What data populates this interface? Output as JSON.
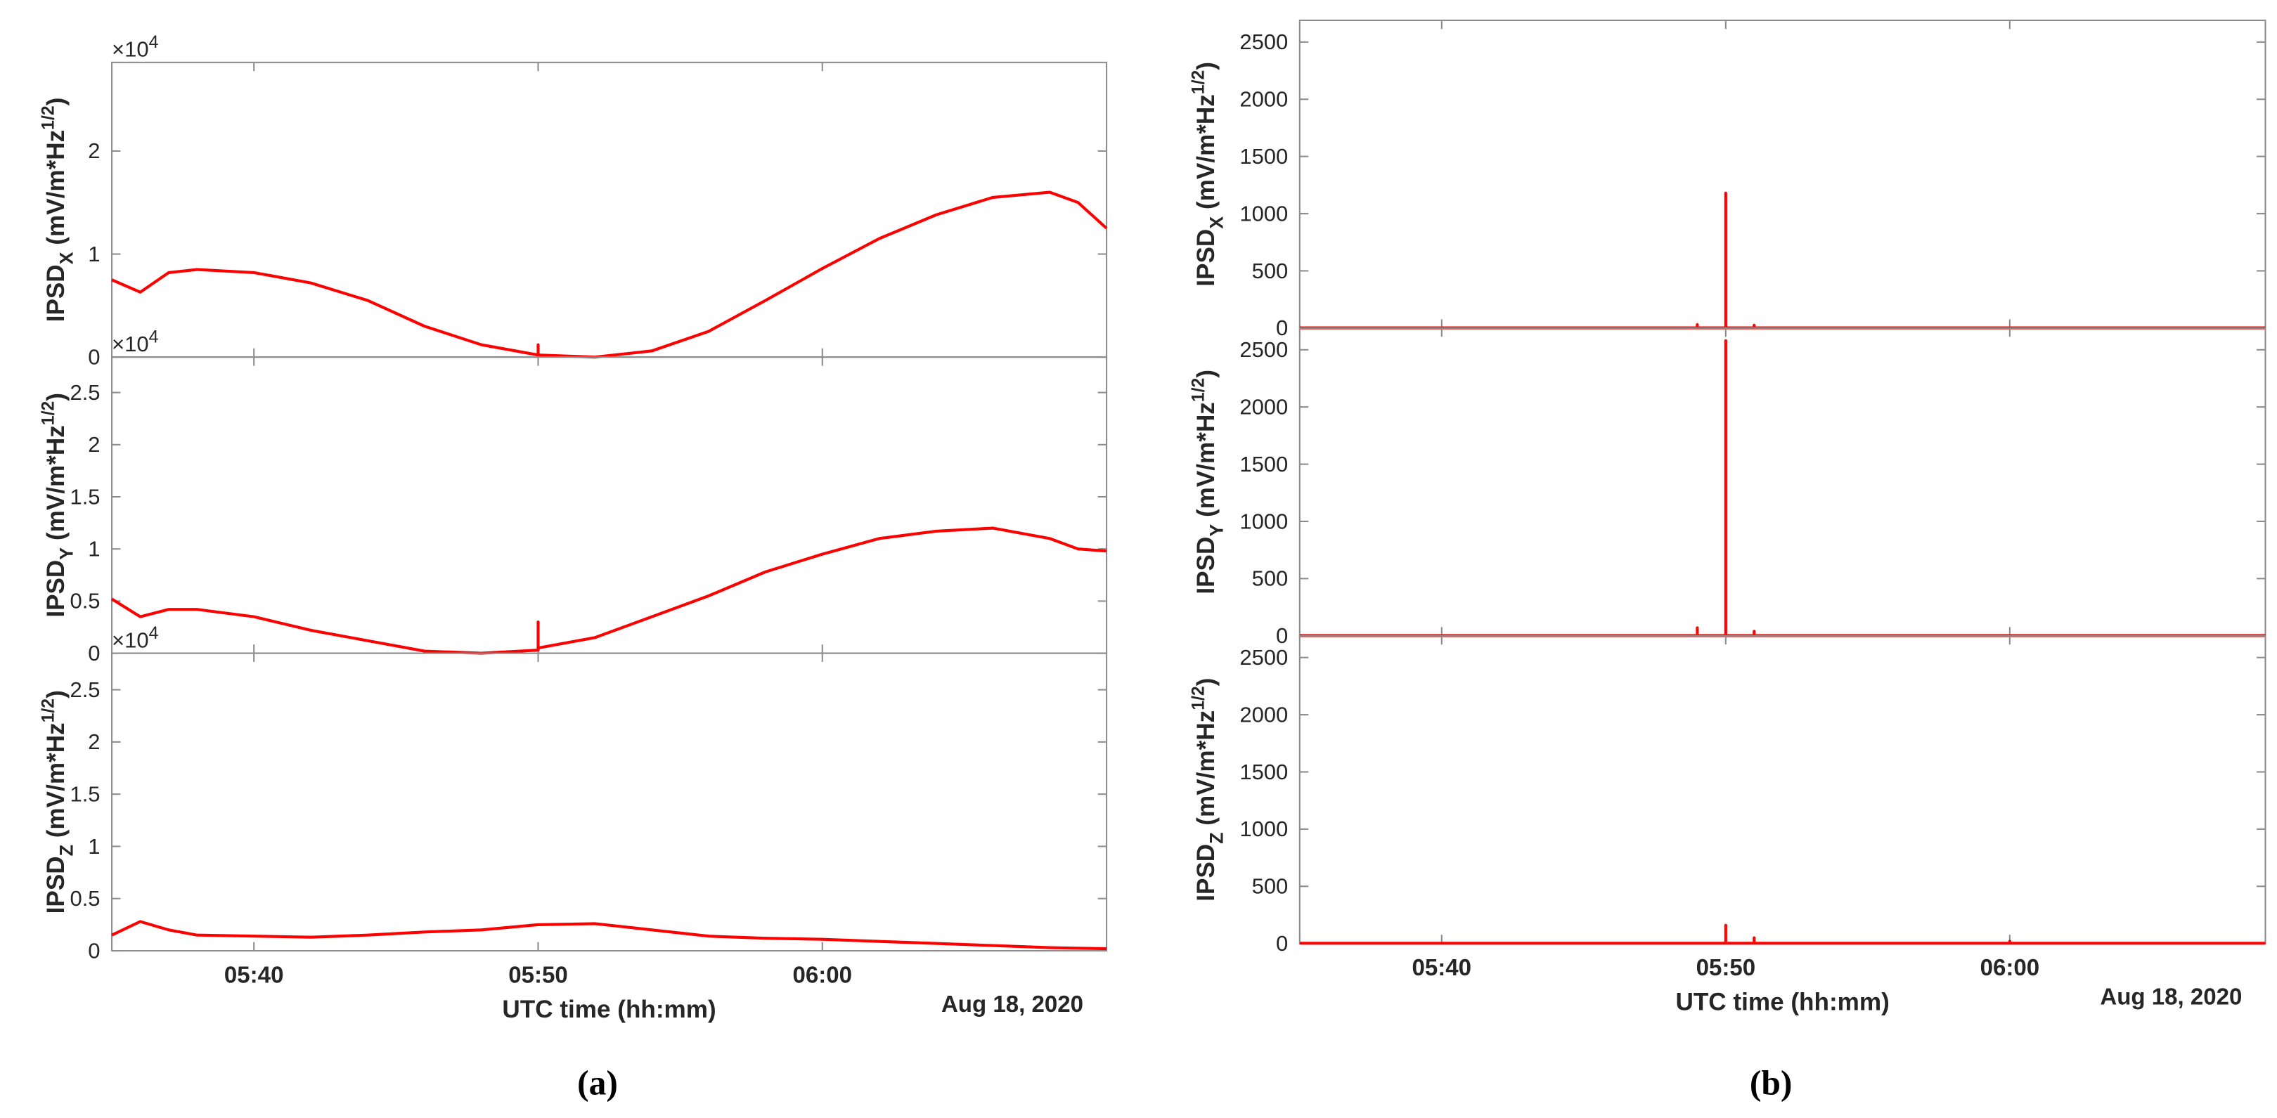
{
  "chart_data": [
    {
      "type": "line",
      "y_multiplier": {
        "base": "×10",
        "exponent": "4"
      },
      "ylabel": {
        "text": "IPSD",
        "sub": "X",
        "unit": " (mV/m*Hz",
        "sup": "1/2",
        "close": ")"
      },
      "xlim": [
        "05:35",
        "06:10"
      ],
      "xticks": [
        "05:40",
        "05:50",
        "06:00"
      ],
      "ylim": [
        0,
        2.86
      ],
      "yticks": [
        0,
        1,
        2
      ],
      "color": "#ff0000",
      "x": [
        "05:35",
        "05:36",
        "05:37",
        "05:38",
        "05:40",
        "05:42",
        "05:44",
        "05:46",
        "05:48",
        "05:50",
        "05:50",
        "05:50",
        "05:52",
        "05:54",
        "05:56",
        "05:58",
        "06:00",
        "06:02",
        "06:04",
        "06:06",
        "06:08",
        "06:09",
        "06:10"
      ],
      "values": [
        0.75,
        0.63,
        0.82,
        0.85,
        0.82,
        0.72,
        0.55,
        0.3,
        0.12,
        0.02,
        0.12,
        0.02,
        0,
        0.06,
        0.25,
        0.55,
        0.86,
        1.15,
        1.38,
        1.55,
        1.6,
        1.5,
        1.25
      ]
    },
    {
      "type": "line",
      "y_multiplier": {
        "base": "×10",
        "exponent": "4"
      },
      "ylabel": {
        "text": "IPSD",
        "sub": "Y",
        "unit": " (mV/m*Hz",
        "sup": "1/2",
        "close": ")"
      },
      "xlim": [
        "05:35",
        "06:10"
      ],
      "xticks": [
        "05:40",
        "05:50",
        "06:00"
      ],
      "ylim": [
        0,
        2.84
      ],
      "yticks": [
        0,
        0.5,
        1,
        1.5,
        2,
        2.5
      ],
      "color": "#ff0000",
      "x": [
        "05:35",
        "05:36",
        "05:37",
        "05:38",
        "05:40",
        "05:42",
        "05:44",
        "05:46",
        "05:48",
        "05:50",
        "05:50",
        "05:50",
        "05:52",
        "05:54",
        "05:56",
        "05:58",
        "06:00",
        "06:02",
        "06:04",
        "06:06",
        "06:08",
        "06:09",
        "06:10"
      ],
      "values": [
        0.52,
        0.35,
        0.42,
        0.42,
        0.35,
        0.22,
        0.12,
        0.02,
        0,
        0.03,
        0.3,
        0.05,
        0.15,
        0.35,
        0.55,
        0.78,
        0.95,
        1.1,
        1.17,
        1.2,
        1.1,
        1.0,
        0.98
      ]
    },
    {
      "type": "line",
      "y_multiplier": {
        "base": "×10",
        "exponent": "4"
      },
      "ylabel": {
        "text": "IPSD",
        "sub": "Z",
        "unit": " (mV/m*Hz",
        "sup": "1/2",
        "close": ")"
      },
      "xlim": [
        "05:35",
        "06:10"
      ],
      "xticks": [
        "05:40",
        "05:50",
        "06:00"
      ],
      "ylim": [
        0,
        2.85
      ],
      "yticks": [
        0,
        0.5,
        1,
        1.5,
        2,
        2.5
      ],
      "color": "#ff0000",
      "xlabel": "UTC time (hh:mm)",
      "date_label": "Aug 18, 2020",
      "panel_label": "(a)",
      "x": [
        "05:35",
        "05:36",
        "05:37",
        "05:38",
        "05:40",
        "05:42",
        "05:44",
        "05:46",
        "05:48",
        "05:50",
        "05:52",
        "05:54",
        "05:56",
        "05:58",
        "06:00",
        "06:02",
        "06:04",
        "06:06",
        "06:08",
        "06:10"
      ],
      "values": [
        0.15,
        0.28,
        0.2,
        0.15,
        0.14,
        0.13,
        0.15,
        0.18,
        0.2,
        0.25,
        0.26,
        0.2,
        0.14,
        0.12,
        0.11,
        0.09,
        0.07,
        0.05,
        0.03,
        0.02
      ]
    },
    {
      "type": "line",
      "ylabel": {
        "text": "IPSD",
        "sub": "X",
        "unit": " (mV/m*Hz",
        "sup": "1/2",
        "close": ")"
      },
      "xlim": [
        "05:35",
        "06:09"
      ],
      "xticks": [
        "05:40",
        "05:50",
        "06:00"
      ],
      "ylim": [
        0,
        2690
      ],
      "yticks": [
        0,
        500,
        1000,
        1500,
        2000,
        2500
      ],
      "color": "#ff0000",
      "x": [
        "05:35",
        "05:49",
        "05:49",
        "05:49",
        "05:50",
        "05:50",
        "05:50",
        "05:50",
        "05:50",
        "05:51",
        "05:51",
        "05:51",
        "06:09"
      ],
      "values": [
        2,
        2,
        30,
        2,
        2,
        1180,
        2,
        760,
        2,
        2,
        25,
        2,
        2
      ]
    },
    {
      "type": "line",
      "ylabel": {
        "text": "IPSD",
        "sub": "Y",
        "unit": " (mV/m*Hz",
        "sup": "1/2",
        "close": ")"
      },
      "xlim": [
        "05:35",
        "06:09"
      ],
      "xticks": [
        "05:40",
        "05:50",
        "06:00"
      ],
      "ylim": [
        0,
        2690
      ],
      "yticks": [
        0,
        500,
        1000,
        1500,
        2000,
        2500
      ],
      "color": "#ff0000",
      "x": [
        "05:35",
        "05:49",
        "05:49",
        "05:49",
        "05:50",
        "05:50",
        "05:50",
        "05:50",
        "05:50",
        "05:51",
        "05:51",
        "05:51",
        "06:09"
      ],
      "values": [
        2,
        2,
        70,
        2,
        2,
        2580,
        2,
        1650,
        2,
        2,
        40,
        2,
        2
      ]
    },
    {
      "type": "line",
      "ylabel": {
        "text": "IPSD",
        "sub": "Z",
        "unit": " (mV/m*Hz",
        "sup": "1/2",
        "close": ")"
      },
      "xlim": [
        "05:35",
        "06:09"
      ],
      "xticks": [
        "05:40",
        "05:50",
        "06:00"
      ],
      "ylim": [
        0,
        2690
      ],
      "yticks": [
        0,
        500,
        1000,
        1500,
        2000,
        2500
      ],
      "color": "#ff0000",
      "xlabel": "UTC time (hh:mm)",
      "date_label": "Aug 18, 2020",
      "panel_label": "(b)",
      "x": [
        "05:35",
        "05:50",
        "05:50",
        "05:50",
        "05:51",
        "05:51",
        "05:51",
        "06:00",
        "06:00",
        "06:00",
        "06:09"
      ],
      "values": [
        2,
        2,
        160,
        2,
        2,
        50,
        2,
        2,
        20,
        2,
        2
      ]
    }
  ]
}
